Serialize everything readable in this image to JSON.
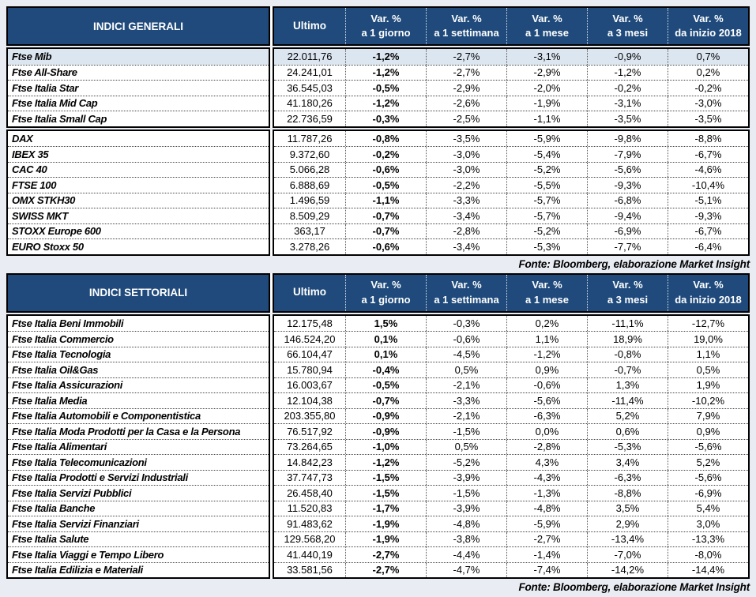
{
  "page": {
    "background_color": "#e9edf3",
    "header_bg_color": "#1f4a7b",
    "header_text_color": "#ffffff",
    "highlight_row_color": "#dce6f1"
  },
  "columns": {
    "ultimo": "Ultimo",
    "var": [
      {
        "l1": "Var. %",
        "l2": "a 1 giorno"
      },
      {
        "l1": "Var. %",
        "l2": "a 1 settimana"
      },
      {
        "l1": "Var. %",
        "l2": "a 1 mese"
      },
      {
        "l1": "Var. %",
        "l2": "a 3 mesi"
      },
      {
        "l1": "Var. %",
        "l2": "da inizio 2018"
      }
    ]
  },
  "tables": [
    {
      "title": "INDICI GENERALI",
      "fonte": "Fonte: Bloomberg, elaborazione Market Insight",
      "blocks": [
        {
          "rows": [
            {
              "name": "Ftse Mib",
              "highlight": true,
              "values": [
                "22.011,76",
                "-1,2%",
                "-2,7%",
                "-3,1%",
                "-0,9%",
                "0,7%"
              ]
            },
            {
              "name": "Ftse All-Share",
              "values": [
                "24.241,01",
                "-1,2%",
                "-2,7%",
                "-2,9%",
                "-1,2%",
                "0,2%"
              ]
            },
            {
              "name": "Ftse Italia Star",
              "values": [
                "36.545,03",
                "-0,5%",
                "-2,9%",
                "-2,0%",
                "-0,2%",
                "-0,2%"
              ]
            },
            {
              "name": "Ftse Italia Mid Cap",
              "values": [
                "41.180,26",
                "-1,2%",
                "-2,6%",
                "-1,9%",
                "-3,1%",
                "-3,0%"
              ]
            },
            {
              "name": "Ftse Italia Small Cap",
              "values": [
                "22.736,59",
                "-0,3%",
                "-2,5%",
                "-1,1%",
                "-3,5%",
                "-3,5%"
              ]
            }
          ]
        },
        {
          "rows": [
            {
              "name": "DAX",
              "values": [
                "11.787,26",
                "-0,8%",
                "-3,5%",
                "-5,9%",
                "-9,8%",
                "-8,8%"
              ]
            },
            {
              "name": "IBEX 35",
              "values": [
                "9.372,60",
                "-0,2%",
                "-3,0%",
                "-5,4%",
                "-7,9%",
                "-6,7%"
              ]
            },
            {
              "name": "CAC 40",
              "values": [
                "5.066,28",
                "-0,6%",
                "-3,0%",
                "-5,2%",
                "-5,6%",
                "-4,6%"
              ]
            },
            {
              "name": "FTSE 100",
              "values": [
                "6.888,69",
                "-0,5%",
                "-2,2%",
                "-5,5%",
                "-9,3%",
                "-10,4%"
              ]
            },
            {
              "name": "OMX STKH30",
              "values": [
                "1.496,59",
                "-1,1%",
                "-3,3%",
                "-5,7%",
                "-6,8%",
                "-5,1%"
              ]
            },
            {
              "name": "SWISS MKT",
              "values": [
                "8.509,29",
                "-0,7%",
                "-3,4%",
                "-5,7%",
                "-9,4%",
                "-9,3%"
              ]
            },
            {
              "name": "STOXX Europe 600",
              "values": [
                "363,17",
                "-0,7%",
                "-2,8%",
                "-5,2%",
                "-6,9%",
                "-6,7%"
              ]
            },
            {
              "name": "EURO Stoxx 50",
              "values": [
                "3.278,26",
                "-0,6%",
                "-3,4%",
                "-5,3%",
                "-7,7%",
                "-6,4%"
              ]
            }
          ]
        }
      ]
    },
    {
      "title": "INDICI SETTORIALI",
      "fonte": "Fonte: Bloomberg, elaborazione Market Insight",
      "blocks": [
        {
          "rows": [
            {
              "name": "Ftse Italia Beni Immobili",
              "values": [
                "12.175,48",
                "1,5%",
                "-0,3%",
                "0,2%",
                "-11,1%",
                "-12,7%"
              ]
            },
            {
              "name": "Ftse Italia Commercio",
              "values": [
                "146.524,20",
                "0,1%",
                "-0,6%",
                "1,1%",
                "18,9%",
                "19,0%"
              ]
            },
            {
              "name": "Ftse Italia Tecnologia",
              "values": [
                "66.104,47",
                "0,1%",
                "-4,5%",
                "-1,2%",
                "-0,8%",
                "1,1%"
              ]
            },
            {
              "name": "Ftse Italia Oil&Gas",
              "values": [
                "15.780,94",
                "-0,4%",
                "0,5%",
                "0,9%",
                "-0,7%",
                "0,5%"
              ]
            },
            {
              "name": "Ftse Italia Assicurazioni",
              "values": [
                "16.003,67",
                "-0,5%",
                "-2,1%",
                "-0,6%",
                "1,3%",
                "1,9%"
              ]
            },
            {
              "name": "Ftse Italia Media",
              "values": [
                "12.104,38",
                "-0,7%",
                "-3,3%",
                "-5,6%",
                "-11,4%",
                "-10,2%"
              ]
            },
            {
              "name": "Ftse Italia Automobili e Componentistica",
              "values": [
                "203.355,80",
                "-0,9%",
                "-2,1%",
                "-6,3%",
                "5,2%",
                "7,9%"
              ]
            },
            {
              "name": "Ftse Italia Moda Prodotti per la Casa e la Persona",
              "values": [
                "76.517,92",
                "-0,9%",
                "-1,5%",
                "0,0%",
                "0,6%",
                "0,9%"
              ]
            },
            {
              "name": "Ftse Italia Alimentari",
              "values": [
                "73.264,65",
                "-1,0%",
                "0,5%",
                "-2,8%",
                "-5,3%",
                "-5,6%"
              ]
            },
            {
              "name": "Ftse Italia Telecomunicazioni",
              "values": [
                "14.842,23",
                "-1,2%",
                "-5,2%",
                "4,3%",
                "3,4%",
                "5,2%"
              ]
            },
            {
              "name": "Ftse Italia Prodotti e Servizi Industriali",
              "values": [
                "37.747,73",
                "-1,5%",
                "-3,9%",
                "-4,3%",
                "-6,3%",
                "-5,6%"
              ]
            },
            {
              "name": "Ftse Italia Servizi Pubblici",
              "values": [
                "26.458,40",
                "-1,5%",
                "-1,5%",
                "-1,3%",
                "-8,8%",
                "-6,9%"
              ]
            },
            {
              "name": "Ftse Italia Banche",
              "values": [
                "11.520,83",
                "-1,7%",
                "-3,9%",
                "-4,8%",
                "3,5%",
                "5,4%"
              ]
            },
            {
              "name": "Ftse Italia Servizi Finanziari",
              "values": [
                "91.483,62",
                "-1,9%",
                "-4,8%",
                "-5,9%",
                "2,9%",
                "3,0%"
              ]
            },
            {
              "name": "Ftse Italia Salute",
              "values": [
                "129.568,20",
                "-1,9%",
                "-3,8%",
                "-2,7%",
                "-13,4%",
                "-13,3%"
              ]
            },
            {
              "name": "Ftse Italia Viaggi e Tempo Libero",
              "values": [
                "41.440,19",
                "-2,7%",
                "-4,4%",
                "-1,4%",
                "-7,0%",
                "-8,0%"
              ]
            },
            {
              "name": "Ftse Italia Edilizia e Materiali",
              "values": [
                "33.581,56",
                "-2,7%",
                "-4,7%",
                "-7,4%",
                "-14,2%",
                "-14,4%"
              ]
            }
          ]
        }
      ]
    }
  ]
}
